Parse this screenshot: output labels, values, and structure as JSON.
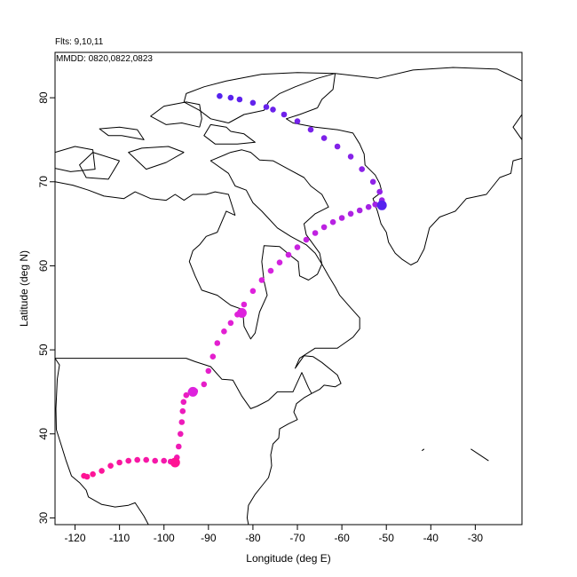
{
  "header": {
    "flights_label": "Flts: 9,10,11",
    "dates_label": "MMDD: 0820,0822,0823"
  },
  "chart_data": {
    "type": "scatter",
    "title": "",
    "xlabel": "Longitude (deg E)",
    "ylabel": "Latitude (deg N)",
    "xlim": [
      -124.5,
      -19.5
    ],
    "ylim": [
      29.2,
      85.4
    ],
    "x_ticks": [
      -120,
      -110,
      -100,
      -90,
      -80,
      -70,
      -60,
      -50,
      -40,
      -30
    ],
    "y_ticks": [
      30,
      40,
      50,
      60,
      70,
      80
    ],
    "grid": false,
    "legend": "none",
    "colors": {
      "track_start": "#ff1493",
      "track_mid": "#dd22dd",
      "track_end": "#5522ee",
      "coastline": "#000000"
    },
    "series": [
      {
        "values": [
          [
            -118.0,
            35.0
          ],
          [
            -117.3,
            34.9
          ],
          [
            -116.0,
            35.2
          ],
          [
            -114.0,
            35.6
          ],
          [
            -112.0,
            36.2
          ],
          [
            -110.0,
            36.6
          ],
          [
            -108.0,
            36.8
          ],
          [
            -106.0,
            36.9
          ],
          [
            -104.0,
            36.9
          ],
          [
            -102.0,
            36.8
          ],
          [
            -100.0,
            36.8
          ],
          [
            -98.5,
            36.7
          ],
          [
            -97.5,
            36.6
          ],
          [
            -97.1,
            37.2
          ],
          [
            -96.7,
            38.5
          ],
          [
            -96.3,
            40.0
          ],
          [
            -96.0,
            41.4
          ],
          [
            -95.8,
            42.7
          ],
          [
            -95.6,
            43.8
          ],
          [
            -95.0,
            44.6
          ],
          [
            -94.0,
            45.0
          ],
          [
            -93.0,
            45.1
          ],
          [
            -91.0,
            45.9
          ],
          [
            -90.0,
            47.5
          ],
          [
            -89.0,
            49.2
          ],
          [
            -88.0,
            50.8
          ],
          [
            -86.5,
            52.2
          ],
          [
            -85.0,
            53.2
          ],
          [
            -83.5,
            54.2
          ],
          [
            -82.0,
            55.4
          ],
          [
            -80.0,
            57.0
          ],
          [
            -78.0,
            58.3
          ],
          [
            -76.0,
            59.4
          ],
          [
            -74.0,
            60.4
          ],
          [
            -72.0,
            61.3
          ],
          [
            -70.0,
            62.2
          ],
          [
            -68.0,
            63.1
          ],
          [
            -66.0,
            63.9
          ],
          [
            -64.0,
            64.6
          ],
          [
            -62.0,
            65.2
          ],
          [
            -60.0,
            65.7
          ],
          [
            -58.0,
            66.2
          ],
          [
            -56.0,
            66.6
          ],
          [
            -54.0,
            67.0
          ],
          [
            -52.5,
            67.3
          ],
          [
            -51.5,
            67.2
          ],
          [
            -51.0,
            67.8
          ],
          [
            -51.5,
            68.8
          ],
          [
            -53.0,
            70.0
          ],
          [
            -55.5,
            71.5
          ],
          [
            -58.0,
            73.0
          ],
          [
            -61.0,
            74.2
          ],
          [
            -64.0,
            75.2
          ],
          [
            -67.0,
            76.2
          ],
          [
            -70.0,
            77.2
          ],
          [
            -73.0,
            78.0
          ],
          [
            -75.5,
            78.6
          ],
          [
            -77.0,
            78.9
          ],
          [
            -80.0,
            79.4
          ],
          [
            -83.0,
            79.8
          ],
          [
            -85.0,
            80.0
          ],
          [
            -87.5,
            80.2
          ]
        ]
      }
    ],
    "marker_points": [
      [
        -97.5,
        36.6
      ],
      [
        -93.5,
        45.0
      ],
      [
        -82.5,
        54.4
      ],
      [
        -51.0,
        67.2
      ]
    ],
    "land_outlines": [
      [
        [
          -124.5,
          49.0
        ],
        [
          -123.5,
          48.2
        ],
        [
          -124.0,
          46.5
        ],
        [
          -124.3,
          43.0
        ],
        [
          -124.2,
          40.5
        ],
        [
          -123.0,
          38.5
        ],
        [
          -122.0,
          36.8
        ],
        [
          -120.8,
          35.0
        ],
        [
          -119.0,
          34.2
        ],
        [
          -117.5,
          33.3
        ],
        [
          -117.0,
          32.5
        ],
        [
          -114.0,
          31.6
        ],
        [
          -111.0,
          31.3
        ],
        [
          -108.0,
          31.5
        ],
        [
          -106.5,
          31.8
        ],
        [
          -104.5,
          30.2
        ],
        [
          -103.5,
          29.2
        ]
      ],
      [
        [
          -124.5,
          49.0
        ],
        [
          -95.0,
          49.0
        ],
        [
          -93.0,
          48.6
        ],
        [
          -89.5,
          48.0
        ],
        [
          -87.0,
          46.5
        ],
        [
          -84.5,
          46.4
        ],
        [
          -82.5,
          44.5
        ],
        [
          -80.5,
          43.0
        ],
        [
          -79.0,
          43.3
        ],
        [
          -76.5,
          44.0
        ],
        [
          -74.5,
          45.0
        ],
        [
          -71.0,
          45.0
        ],
        [
          -69.0,
          47.3
        ],
        [
          -67.5,
          45.5
        ],
        [
          -66.8,
          44.8
        ]
      ],
      [
        [
          -66.8,
          44.8
        ],
        [
          -68.5,
          44.3
        ],
        [
          -70.2,
          43.6
        ],
        [
          -70.8,
          42.6
        ],
        [
          -70.0,
          41.7
        ],
        [
          -72.0,
          41.2
        ],
        [
          -74.0,
          40.6
        ],
        [
          -74.2,
          39.5
        ],
        [
          -75.5,
          38.8
        ],
        [
          -76.0,
          37.5
        ],
        [
          -75.8,
          36.2
        ],
        [
          -76.5,
          34.8
        ],
        [
          -78.0,
          33.8
        ],
        [
          -79.5,
          32.8
        ],
        [
          -81.0,
          31.5
        ],
        [
          -81.3,
          30.0
        ],
        [
          -81.0,
          29.2
        ]
      ],
      [
        [
          -66.8,
          44.8
        ],
        [
          -65.0,
          45.3
        ],
        [
          -64.0,
          45.8
        ],
        [
          -61.5,
          45.6
        ],
        [
          -60.2,
          46.0
        ],
        [
          -61.0,
          47.0
        ],
        [
          -64.5,
          48.5
        ],
        [
          -66.5,
          49.2
        ],
        [
          -68.5,
          49.3
        ],
        [
          -70.5,
          47.8
        ],
        [
          -69.5,
          49.0
        ],
        [
          -66.0,
          50.2
        ],
        [
          -61.0,
          50.2
        ],
        [
          -57.5,
          51.5
        ],
        [
          -56.0,
          52.5
        ],
        [
          -56.0,
          53.8
        ],
        [
          -58.0,
          55.0
        ],
        [
          -60.5,
          56.5
        ],
        [
          -61.5,
          57.5
        ],
        [
          -63.0,
          58.8
        ],
        [
          -64.5,
          60.2
        ]
      ],
      [
        [
          -64.5,
          60.2
        ],
        [
          -65.5,
          59.0
        ],
        [
          -67.5,
          58.3
        ],
        [
          -69.5,
          58.8
        ],
        [
          -69.8,
          60.5
        ],
        [
          -71.5,
          61.2
        ],
        [
          -74.0,
          62.3
        ],
        [
          -77.5,
          62.4
        ],
        [
          -78.0,
          60.5
        ],
        [
          -77.5,
          58.2
        ],
        [
          -76.8,
          56.5
        ],
        [
          -78.5,
          54.5
        ],
        [
          -79.5,
          52.0
        ],
        [
          -80.5,
          51.3
        ],
        [
          -82.0,
          52.8
        ],
        [
          -82.3,
          54.8
        ],
        [
          -85.0,
          55.3
        ],
        [
          -88.0,
          56.5
        ],
        [
          -91.5,
          57.1
        ],
        [
          -93.0,
          58.8
        ],
        [
          -94.3,
          60.5
        ],
        [
          -93.5,
          61.8
        ],
        [
          -92.0,
          62.5
        ],
        [
          -90.5,
          63.5
        ],
        [
          -88.0,
          64.0
        ],
        [
          -86.0,
          66.5
        ],
        [
          -84.0,
          66.0
        ]
      ],
      [
        [
          -84.0,
          66.0
        ],
        [
          -85.5,
          68.5
        ],
        [
          -88.5,
          68.8
        ],
        [
          -90.5,
          68.5
        ],
        [
          -93.5,
          68.5
        ],
        [
          -95.5,
          67.8
        ],
        [
          -97.5,
          68.5
        ],
        [
          -99.5,
          67.8
        ],
        [
          -103.0,
          68.0
        ],
        [
          -106.5,
          68.8
        ],
        [
          -109.0,
          68.0
        ],
        [
          -113.5,
          68.3
        ],
        [
          -117.0,
          69.0
        ],
        [
          -120.5,
          69.6
        ],
        [
          -124.5,
          70.0
        ]
      ],
      [
        [
          -64.5,
          60.2
        ],
        [
          -65.0,
          61.5
        ],
        [
          -66.5,
          62.6
        ],
        [
          -68.0,
          63.7
        ],
        [
          -68.5,
          65.0
        ],
        [
          -66.0,
          66.2
        ],
        [
          -63.0,
          67.0
        ],
        [
          -64.5,
          68.5
        ],
        [
          -67.0,
          69.5
        ],
        [
          -68.5,
          70.5
        ],
        [
          -72.0,
          71.5
        ],
        [
          -75.5,
          72.5
        ],
        [
          -78.5,
          72.6
        ],
        [
          -80.5,
          73.5
        ],
        [
          -82.5,
          73.8
        ],
        [
          -85.0,
          73.5
        ],
        [
          -89.5,
          72.5
        ],
        [
          -85.5,
          71.0
        ],
        [
          -84.0,
          69.5
        ],
        [
          -81.5,
          69.0
        ],
        [
          -80.0,
          67.5
        ],
        [
          -78.0,
          66.5
        ],
        [
          -74.5,
          64.5
        ],
        [
          -71.5,
          63.5
        ],
        [
          -68.0,
          62.5
        ],
        [
          -66.0,
          61.5
        ],
        [
          -64.5,
          60.2
        ]
      ],
      [
        [
          -85.0,
          76.0
        ],
        [
          -82.0,
          75.7
        ],
        [
          -79.5,
          74.7
        ],
        [
          -83.5,
          74.5
        ],
        [
          -88.5,
          74.5
        ],
        [
          -91.0,
          75.5
        ],
        [
          -89.5,
          76.8
        ],
        [
          -86.0,
          76.5
        ],
        [
          -85.0,
          76.0
        ]
      ],
      [
        [
          -85.5,
          77.0
        ],
        [
          -82.0,
          78.0
        ],
        [
          -77.5,
          78.5
        ],
        [
          -76.5,
          79.5
        ],
        [
          -74.0,
          80.5
        ],
        [
          -70.5,
          81.3
        ],
        [
          -65.5,
          82.3
        ],
        [
          -61.5,
          82.9
        ],
        [
          -70.0,
          83.0
        ],
        [
          -78.0,
          82.8
        ],
        [
          -86.0,
          82.0
        ],
        [
          -91.0,
          81.3
        ],
        [
          -95.0,
          80.5
        ],
        [
          -95.5,
          79.5
        ],
        [
          -92.0,
          78.5
        ],
        [
          -89.5,
          77.5
        ],
        [
          -85.5,
          77.0
        ]
      ],
      [
        [
          -95.5,
          73.5
        ],
        [
          -99.5,
          72.3
        ],
        [
          -104.0,
          71.5
        ],
        [
          -108.0,
          73.5
        ],
        [
          -105.0,
          74.0
        ],
        [
          -99.0,
          74.2
        ],
        [
          -95.5,
          73.5
        ]
      ],
      [
        [
          -110.0,
          72.5
        ],
        [
          -112.5,
          70.3
        ],
        [
          -117.5,
          70.5
        ],
        [
          -119.0,
          72.0
        ],
        [
          -116.0,
          73.5
        ],
        [
          -110.0,
          72.5
        ]
      ],
      [
        [
          -124.5,
          73.5
        ],
        [
          -120.0,
          74.2
        ],
        [
          -116.0,
          73.8
        ],
        [
          -115.5,
          71.5
        ],
        [
          -121.0,
          71.2
        ],
        [
          -124.5,
          71.6
        ]
      ],
      [
        [
          -109.5,
          75.5
        ],
        [
          -104.5,
          75.0
        ],
        [
          -106.0,
          76.2
        ],
        [
          -110.0,
          76.5
        ],
        [
          -114.5,
          76.3
        ],
        [
          -112.5,
          75.5
        ],
        [
          -109.5,
          75.5
        ]
      ],
      [
        [
          -92.0,
          76.5
        ],
        [
          -96.0,
          77.0
        ],
        [
          -99.5,
          76.8
        ],
        [
          -103.0,
          77.8
        ],
        [
          -100.0,
          79.0
        ],
        [
          -95.0,
          79.5
        ],
        [
          -92.0,
          79.2
        ],
        [
          -91.5,
          77.5
        ],
        [
          -92.0,
          76.5
        ]
      ],
      [
        [
          -61.5,
          82.9
        ],
        [
          -52.0,
          82.3
        ],
        [
          -44.0,
          83.3
        ],
        [
          -35.0,
          83.6
        ],
        [
          -25.0,
          83.4
        ],
        [
          -19.5,
          82.0
        ]
      ],
      [
        [
          -65.5,
          78.8
        ],
        [
          -69.5,
          78.0
        ],
        [
          -72.5,
          77.5
        ],
        [
          -71.0,
          77.0
        ],
        [
          -66.0,
          76.5
        ],
        [
          -61.0,
          76.2
        ],
        [
          -57.5,
          75.8
        ],
        [
          -56.0,
          74.5
        ],
        [
          -55.0,
          73.3
        ],
        [
          -54.8,
          72.0
        ],
        [
          -52.5,
          70.8
        ],
        [
          -51.5,
          69.8
        ],
        [
          -51.0,
          68.8
        ],
        [
          -53.0,
          68.0
        ],
        [
          -52.0,
          66.5
        ],
        [
          -51.2,
          65.0
        ],
        [
          -50.0,
          64.0
        ],
        [
          -49.5,
          62.8
        ],
        [
          -48.0,
          61.5
        ],
        [
          -46.5,
          60.8
        ],
        [
          -44.5,
          60.1
        ],
        [
          -43.0,
          60.5
        ],
        [
          -41.5,
          62.0
        ],
        [
          -40.3,
          64.5
        ],
        [
          -38.0,
          65.8
        ],
        [
          -34.5,
          66.5
        ],
        [
          -32.0,
          68.0
        ],
        [
          -27.5,
          68.5
        ],
        [
          -24.5,
          70.5
        ],
        [
          -22.0,
          71.0
        ],
        [
          -21.5,
          72.5
        ],
        [
          -19.5,
          72.8
        ]
      ],
      [
        [
          -65.5,
          78.8
        ],
        [
          -64.5,
          79.8
        ],
        [
          -62.0,
          81.0
        ],
        [
          -61.5,
          82.9
        ]
      ],
      [
        [
          -19.5,
          75.0
        ],
        [
          -21.5,
          76.5
        ],
        [
          -19.5,
          78.0
        ]
      ],
      [
        [
          -42.0,
          38.0
        ],
        [
          -41.5,
          38.2
        ]
      ],
      [
        [
          -31.0,
          38.2
        ],
        [
          -29.0,
          37.5
        ],
        [
          -27.0,
          36.8
        ]
      ]
    ]
  }
}
